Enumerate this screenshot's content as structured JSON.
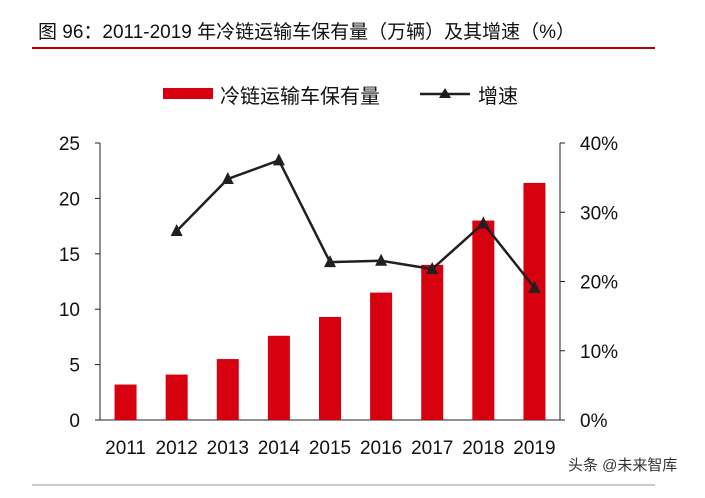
{
  "chart_data": {
    "type": "bar+line",
    "title": "图 96：2011-2019 年冷链运输车保有量（万辆）及其增速（%）",
    "categories": [
      "2011",
      "2012",
      "2013",
      "2014",
      "2015",
      "2016",
      "2017",
      "2018",
      "2019"
    ],
    "series": [
      {
        "name": "冷链运输车保有量",
        "type": "bar",
        "axis": "left",
        "color": "#D7000F",
        "values": [
          3.2,
          4.1,
          5.5,
          7.6,
          9.3,
          11.5,
          14.0,
          18.0,
          21.4
        ]
      },
      {
        "name": "增速",
        "type": "line",
        "axis": "right",
        "color": "#231F20",
        "marker": "triangle",
        "values": [
          null,
          27.3,
          34.8,
          37.5,
          22.8,
          23.0,
          21.8,
          28.4,
          19.1
        ]
      }
    ],
    "left_axis": {
      "ylim": [
        0,
        25
      ],
      "ticks": [
        "0",
        "5",
        "10",
        "15",
        "20",
        "25"
      ]
    },
    "right_axis": {
      "ylim": [
        0,
        40
      ],
      "ticks": [
        "0%",
        "10%",
        "20%",
        "30%",
        "40%"
      ]
    },
    "legend_placement": "top",
    "grid": false
  },
  "watermark": "头条 @未来智库",
  "colors": {
    "accent": "#C00000"
  }
}
